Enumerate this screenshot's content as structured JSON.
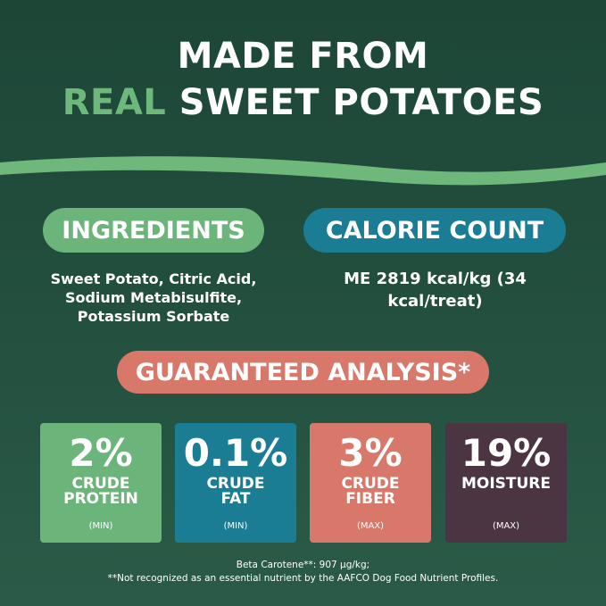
{
  "title": {
    "line1": "MADE FROM",
    "highlight": "REAL",
    "line2": "SWEET POTATOES"
  },
  "ingredients": {
    "heading": "INGREDIENTS",
    "lines": [
      "Sweet Potato, Citric Acid,",
      "Sodium Metabisulfite,",
      "Potassium Sorbate"
    ]
  },
  "calories": {
    "heading": "CALORIE COUNT",
    "lines": [
      "ME 2819 kcal/kg (34",
      "kcal/treat)"
    ]
  },
  "analysis": {
    "heading": "GUARANTEED ANALYSIS*",
    "items": [
      {
        "value": "2%",
        "label": [
          "CRUDE",
          "PROTEIN"
        ],
        "qualifier": "(MIN)"
      },
      {
        "value": "0.1%",
        "label": [
          "CRUDE",
          "FAT"
        ],
        "qualifier": "(MIN)"
      },
      {
        "value": "3%",
        "label": [
          "CRUDE",
          "FIBER"
        ],
        "qualifier": "(MAX)"
      },
      {
        "value": "19%",
        "label": [
          "MOISTURE"
        ],
        "qualifier": "(MAX)"
      }
    ]
  },
  "footnotes": [
    "Beta Carotene**: 907 µg/kg;",
    "**Not recognized as an essential nutrient by the AAFCO Dog Food Nutrient Profiles."
  ]
}
